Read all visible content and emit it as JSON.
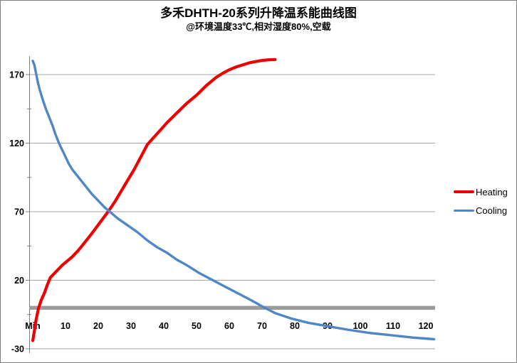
{
  "chart_data": {
    "type": "line",
    "title": "多禾DHTH-20系列升降温系能曲线图",
    "subtitle": "@环境温度33℃,相对湿度80%,空载",
    "x_axis": {
      "tick_values": [
        0,
        10,
        20,
        30,
        40,
        50,
        60,
        70,
        80,
        90,
        100,
        110,
        120
      ],
      "tick_labels": [
        "Min",
        "10",
        "20",
        "30",
        "40",
        "50",
        "60",
        "70",
        "80",
        "90",
        "100",
        "110",
        "120"
      ],
      "range": [
        0,
        123
      ]
    },
    "y_axis": {
      "tick_values": [
        170,
        120,
        70,
        20,
        -30
      ],
      "minor_tick_values": [
        145,
        95,
        45,
        -5
      ],
      "range": [
        -30,
        183
      ]
    },
    "zero_line": {
      "value": 0,
      "color": "#9b9b9b"
    },
    "grid": true,
    "gridline_color": "#a6a6a6",
    "axis_color": "#808080",
    "legend_position": "right",
    "series": [
      {
        "name": "Heating",
        "color": "#ee0000",
        "width": 4.2,
        "points": [
          [
            0,
            -24
          ],
          [
            0.5,
            -17
          ],
          [
            1,
            -9
          ],
          [
            1.7,
            -1
          ],
          [
            2.5,
            5
          ],
          [
            3.6,
            11
          ],
          [
            4.5,
            17
          ],
          [
            5.4,
            22
          ],
          [
            7,
            26
          ],
          [
            9,
            31
          ],
          [
            11,
            35
          ],
          [
            12,
            37
          ],
          [
            14,
            42
          ],
          [
            16,
            48
          ],
          [
            18,
            54
          ],
          [
            20.5,
            62
          ],
          [
            23,
            70
          ],
          [
            25,
            77
          ],
          [
            27,
            85
          ],
          [
            29,
            93
          ],
          [
            31,
            101
          ],
          [
            33,
            110
          ],
          [
            35,
            119
          ],
          [
            38,
            127
          ],
          [
            41,
            135
          ],
          [
            44,
            142
          ],
          [
            47,
            149
          ],
          [
            50,
            155
          ],
          [
            53,
            162
          ],
          [
            56,
            168
          ],
          [
            58,
            171
          ],
          [
            60,
            173.5
          ],
          [
            62,
            175.5
          ],
          [
            64,
            177
          ],
          [
            66,
            178.5
          ],
          [
            68,
            179.5
          ],
          [
            70,
            180.3
          ],
          [
            72,
            180.8
          ],
          [
            74,
            181
          ]
        ]
      },
      {
        "name": "Cooling",
        "color": "#4f86c8",
        "width": 3.4,
        "points": [
          [
            0,
            180
          ],
          [
            0.5,
            177
          ],
          [
            1,
            171
          ],
          [
            1.5,
            165
          ],
          [
            2,
            160
          ],
          [
            3,
            152
          ],
          [
            4,
            145
          ],
          [
            5,
            139
          ],
          [
            6,
            133
          ],
          [
            7,
            126
          ],
          [
            8,
            120
          ],
          [
            9,
            115
          ],
          [
            10,
            110
          ],
          [
            11,
            105
          ],
          [
            12,
            101
          ],
          [
            14,
            95
          ],
          [
            16,
            89
          ],
          [
            18,
            83
          ],
          [
            20,
            78
          ],
          [
            22,
            73
          ],
          [
            24,
            69
          ],
          [
            26,
            65
          ],
          [
            29,
            60
          ],
          [
            32,
            55
          ],
          [
            35,
            49
          ],
          [
            38,
            44
          ],
          [
            41,
            40
          ],
          [
            44,
            35
          ],
          [
            47,
            31
          ],
          [
            51,
            25
          ],
          [
            55,
            20
          ],
          [
            59,
            15
          ],
          [
            63,
            10
          ],
          [
            67,
            5
          ],
          [
            70,
            1
          ],
          [
            74,
            -4
          ],
          [
            79,
            -8
          ],
          [
            84,
            -11
          ],
          [
            90,
            -13.5
          ],
          [
            96,
            -16
          ],
          [
            103,
            -18.5
          ],
          [
            109,
            -20
          ],
          [
            116,
            -21.8
          ],
          [
            122.5,
            -23
          ]
        ]
      }
    ]
  }
}
